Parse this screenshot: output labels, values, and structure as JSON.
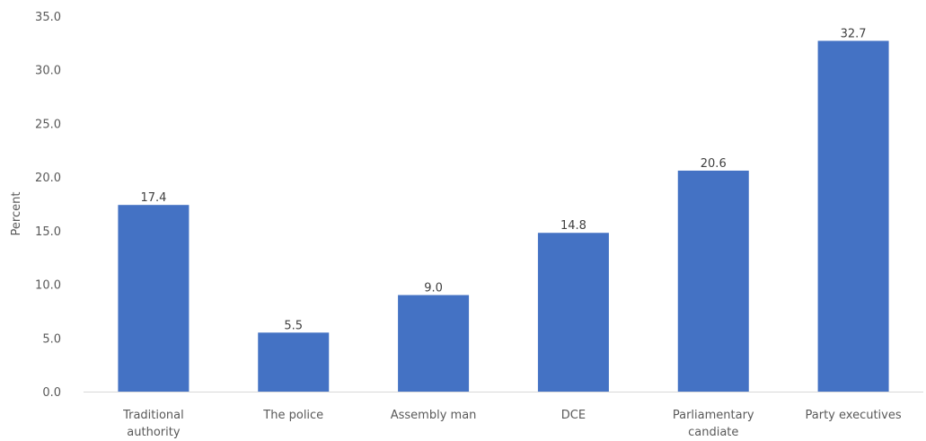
{
  "chart_data": {
    "type": "bar",
    "categories": [
      [
        "Traditional",
        "authority"
      ],
      [
        "The police"
      ],
      [
        "Assembly man"
      ],
      [
        "DCE"
      ],
      [
        "Parliamentary",
        "candiate"
      ],
      [
        "Party executives"
      ]
    ],
    "values": [
      17.4,
      5.5,
      9.0,
      14.8,
      20.6,
      32.7
    ],
    "value_labels": [
      "17.4",
      "5.5",
      "9.0",
      "14.8",
      "20.6",
      "32.7"
    ],
    "title": "",
    "xlabel": "",
    "ylabel": "Percent",
    "ylim": [
      0,
      35
    ],
    "yticks": [
      "0.0",
      "5.0",
      "10.0",
      "15.0",
      "20.0",
      "25.0",
      "30.0",
      "35.0"
    ],
    "grid": false,
    "legend": "none",
    "bar_color": "#4472C4",
    "axis_color": "#D9D9D9"
  }
}
